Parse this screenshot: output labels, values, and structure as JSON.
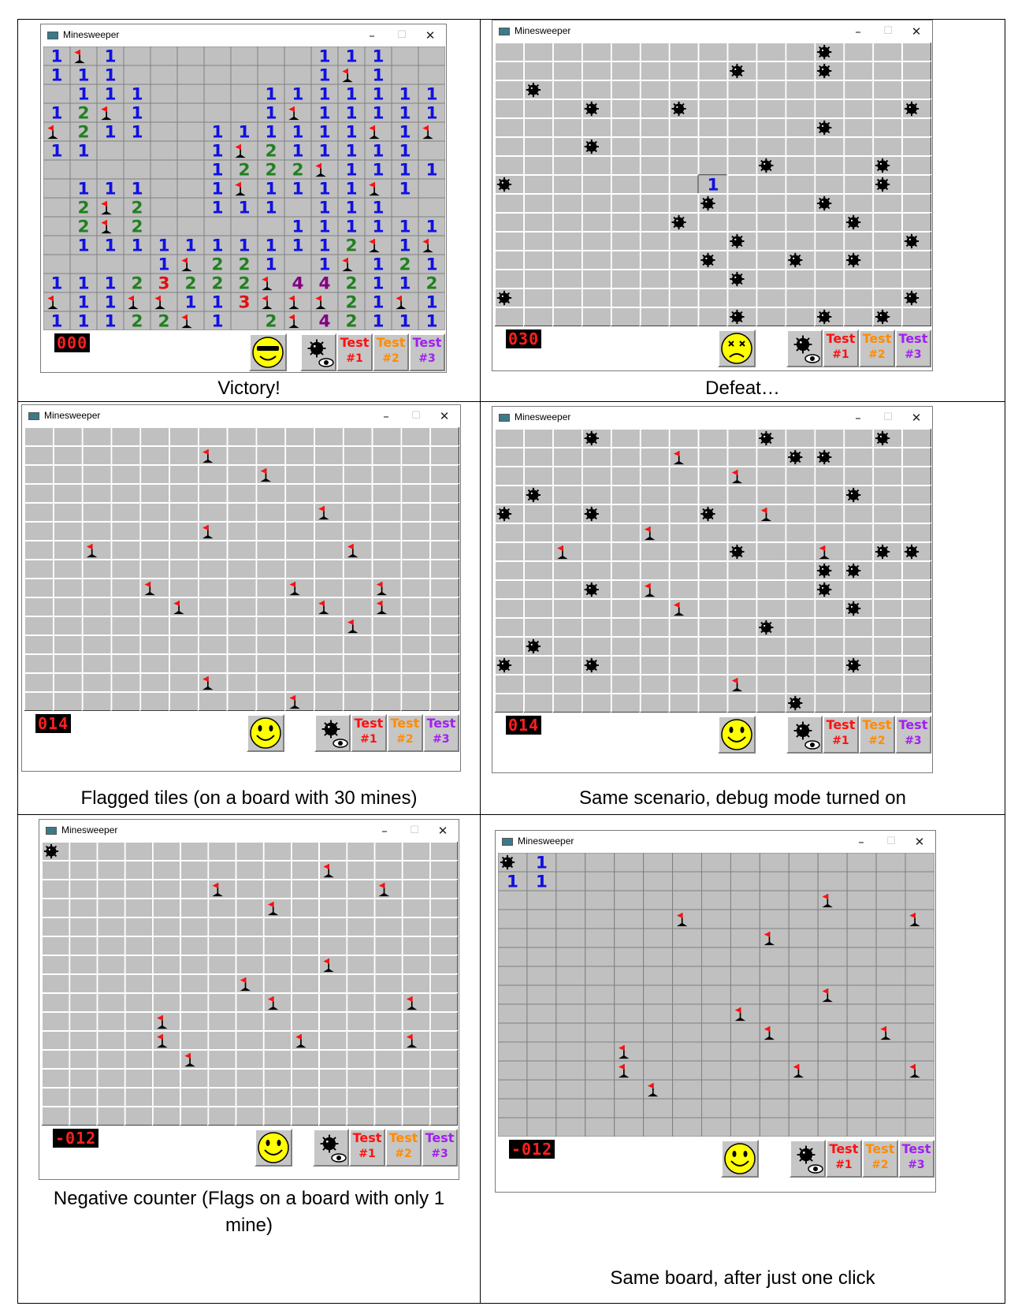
{
  "window_title": "Minesweeper",
  "window_controls": {
    "minimize": "–",
    "maximize": "☐",
    "close": "✕"
  },
  "toolbar": {
    "debug_icon": "mine-eye-icon",
    "tests": [
      {
        "line1": "Test",
        "line2": "#1",
        "color": "#ff1010"
      },
      {
        "line1": "Test",
        "line2": "#2",
        "color": "#ff8c00"
      },
      {
        "line1": "Test",
        "line2": "#3",
        "color": "#a020f0"
      }
    ]
  },
  "panels": [
    {
      "caption": "Victory!",
      "counter": "000",
      "face": "cool-smiley-icon",
      "rows": [
        "1F1.......111..",
        "111.......1F1..",
        ".111....1111111",
        "12F1....1F11111",
        "F211..111111F1F",
        "11....1F211111.",
        "......1222F1111",
        ".111..1F1111F1.",
        ".2F2..111.111..",
        ".2F2.....111111",
        ".11111111112F1F",
        "....1F221.1F121",
        "11123222F4421122",
        "F11FF113FFF21F1F",
        "11122F1.2F421111"
      ]
    },
    {
      "caption": "Defeat…",
      "counter": "030",
      "face": "dead-smiley-icon",
      "rows": [
        "...........M...",
        "........M..M...",
        ".M.............",
        "...M..M.......M",
        "...........M...",
        "...M...........",
        ".........M...M.",
        "M......1.....M.",
        ".......M...M...",
        "......M.....M..",
        "........M.....M",
        ".......M..M.M..",
        "........M......",
        "M.............MM",
        "........M..M.M."
      ]
    },
    {
      "caption": "Flagged tiles (on a board with 30 mines)",
      "counter": "014",
      "face": "smiley-icon",
      "rows": [
        "...............",
        "......F........",
        "........F......",
        "...............",
        "..........F....",
        "......F........",
        "..F........F...",
        "...............",
        "....F....F..F..",
        ".....F....F.F..",
        "...........F...",
        "...............",
        "...............",
        "......F........",
        ".........F....."
      ]
    },
    {
      "caption": "Same scenario, debug mode turned on",
      "counter": "014",
      "face": "smiley-icon",
      "rows": [
        "...M.....M...M.",
        "......F...MM...",
        "........F......",
        ".M..........M..",
        "M..M...M.F.....",
        ".....F.........",
        "..F.....M..F.MM",
        "...........MM..",
        "...M.F.....M...",
        "......F.....M..",
        ".........M.....",
        ".M.............",
        "M..M........M..",
        "........F......",
        "..........M...."
      ]
    },
    {
      "caption": "Negative counter (Flags on a board with only 1 mine)",
      "counter": "-012",
      "face": "smiley-icon",
      "rows": [
        "M..............",
        "..........F....",
        "......F.....F..",
        "........F......",
        "...............",
        "...............",
        "..........F....",
        ".......F.......",
        "........F....F.",
        "....F..........",
        "....F....F...F.",
        ".....F.........",
        "...............",
        "...............",
        "..............."
      ]
    },
    {
      "caption": "Same board, after just one click",
      "counter": "-012",
      "face": "smiley-icon",
      "rows": [
        "M1.............",
        "11.............",
        "...........F...",
        "......F.......F",
        ".........F.....",
        "...............",
        "...............",
        "...........F...",
        "........F......",
        ".........F...F.",
        "....F..........",
        "....F.....F...F",
        ".....F.........",
        "...............",
        "..............."
      ]
    }
  ]
}
